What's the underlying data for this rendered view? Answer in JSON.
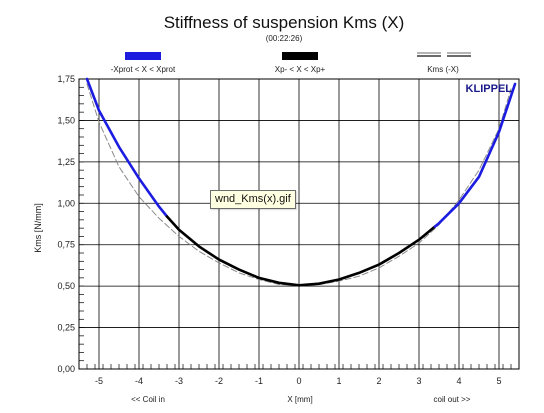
{
  "chart_data": {
    "type": "line",
    "title": "Stiffness of suspension Kms (X)",
    "subtitle": "(00:22:26)",
    "xlabel": "X [mm]",
    "ylabel": "Kms [N/mm]",
    "x_left_label": "<< Coil in",
    "x_right_label": "coil out >>",
    "brand": "KLIPPEL",
    "xlim": [
      -5.5,
      5.5
    ],
    "ylim": [
      0.0,
      1.75
    ],
    "x_ticks": [
      -5,
      -4,
      -3,
      -2,
      -1,
      0,
      1,
      2,
      3,
      4,
      5
    ],
    "x_tick_labels": [
      "-5",
      "-4",
      "-3",
      "-2",
      "-1",
      "0",
      "1",
      "2",
      "3",
      "4",
      "5"
    ],
    "y_ticks": [
      0.0,
      0.25,
      0.5,
      0.75,
      1.0,
      1.25,
      1.5,
      1.75
    ],
    "y_tick_labels": [
      "0,00",
      "0,25",
      "0,50",
      "0,75",
      "1,00",
      "1,25",
      "1,50",
      "1,75"
    ],
    "grid": true,
    "legend_position": "top",
    "series": [
      {
        "name": "-Xprot < X < Xprot",
        "color": "#1c1ce0",
        "style": "solid-thick",
        "x": [
          -5.3,
          -5.0,
          -4.5,
          -4.0,
          -3.5,
          -3.3
        ],
        "y": [
          1.75,
          1.56,
          1.34,
          1.15,
          0.98,
          0.92
        ]
      },
      {
        "name": "Xp- < X < Xp+",
        "color": "#000000",
        "style": "solid-thick",
        "x": [
          -3.3,
          -3.0,
          -2.5,
          -2.0,
          -1.5,
          -1.0,
          -0.5,
          0.0,
          0.5,
          1.0,
          1.5,
          2.0,
          2.5,
          3.0,
          3.4
        ],
        "y": [
          0.92,
          0.84,
          0.74,
          0.66,
          0.6,
          0.55,
          0.52,
          0.505,
          0.515,
          0.54,
          0.58,
          0.63,
          0.7,
          0.78,
          0.86
        ]
      },
      {
        "name": "-Xprot < X < Xprot",
        "color": "#1c1ce0",
        "style": "solid-thick",
        "x": [
          3.4,
          3.5,
          4.0,
          4.5,
          5.0,
          5.4
        ],
        "y": [
          0.86,
          0.88,
          1.0,
          1.16,
          1.43,
          1.72
        ]
      },
      {
        "name": "Kms (-X)",
        "color": "#8a8a8a",
        "style": "dashed",
        "x": [
          -5.3,
          -5.0,
          -4.5,
          -4.0,
          -3.5,
          -3.0,
          -2.5,
          -2.0,
          -1.5,
          -1.0,
          -0.5,
          0.0,
          0.5,
          1.0,
          1.5,
          2.0,
          2.5,
          3.0,
          3.5,
          4.0,
          4.5,
          5.0,
          5.3
        ],
        "y": [
          1.72,
          1.49,
          1.22,
          1.04,
          0.91,
          0.8,
          0.71,
          0.64,
          0.58,
          0.54,
          0.51,
          0.505,
          0.51,
          0.53,
          0.56,
          0.61,
          0.68,
          0.76,
          0.87,
          1.02,
          1.2,
          1.45,
          1.69
        ]
      }
    ],
    "legend": [
      {
        "label": "-Xprot < X < Xprot",
        "color": "#1c1ce0",
        "style": "solid"
      },
      {
        "label": "Xp- < X < Xp+",
        "color": "#000000",
        "style": "solid"
      },
      {
        "label": "Kms (-X)",
        "color": "#6b6b6b",
        "style": "double-dashed"
      }
    ]
  },
  "tooltip": {
    "text": "wnd_Kms(x).gif"
  }
}
